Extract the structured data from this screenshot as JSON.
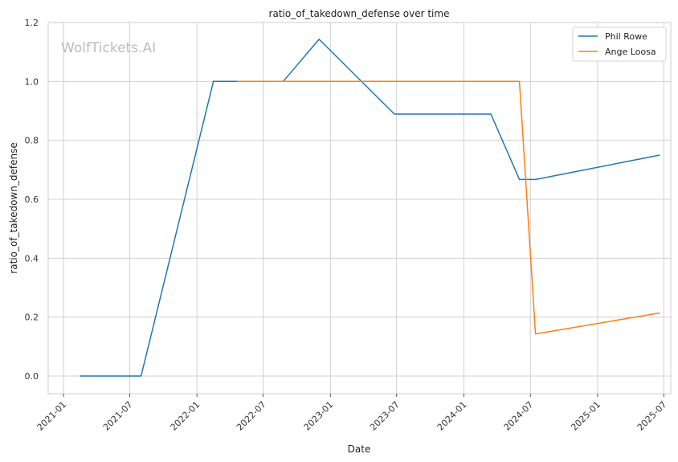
{
  "chart_data": {
    "type": "line",
    "title": "ratio_of_takedown_defense over time",
    "xlabel": "Date",
    "ylabel": "ratio_of_takedown_defense",
    "watermark": "WolfTickets.AI",
    "xlim": [
      "2020-11-20",
      "2025-07-20"
    ],
    "ylim": [
      -0.06,
      1.2
    ],
    "x_ticks": [
      "2021-01",
      "2021-07",
      "2022-01",
      "2022-07",
      "2023-01",
      "2023-07",
      "2024-01",
      "2024-07",
      "2025-01",
      "2025-07"
    ],
    "y_ticks": [
      "0.0",
      "0.2",
      "0.4",
      "0.6",
      "0.8",
      "1.0",
      "1.2"
    ],
    "grid": true,
    "legend_position": "top-right",
    "series": [
      {
        "name": "Phil Rowe",
        "color": "#1f77b4",
        "points": [
          {
            "x": "2021-02-15",
            "y": 0.0
          },
          {
            "x": "2021-08-01",
            "y": 0.0
          },
          {
            "x": "2022-02-15",
            "y": 1.0
          },
          {
            "x": "2022-04-20",
            "y": 1.0
          },
          {
            "x": "2022-08-25",
            "y": 1.0
          },
          {
            "x": "2022-12-01",
            "y": 1.143
          },
          {
            "x": "2023-06-25",
            "y": 0.889
          },
          {
            "x": "2024-03-15",
            "y": 0.889
          },
          {
            "x": "2024-06-01",
            "y": 0.667
          },
          {
            "x": "2024-07-15",
            "y": 0.667
          },
          {
            "x": "2025-06-20",
            "y": 0.75
          }
        ]
      },
      {
        "name": "Ange Loosa",
        "color": "#ff7f0e",
        "points": [
          {
            "x": "2022-04-20",
            "y": 1.0
          },
          {
            "x": "2024-06-01",
            "y": 1.0
          },
          {
            "x": "2024-07-15",
            "y": 0.143
          },
          {
            "x": "2025-06-20",
            "y": 0.214
          }
        ]
      }
    ]
  }
}
